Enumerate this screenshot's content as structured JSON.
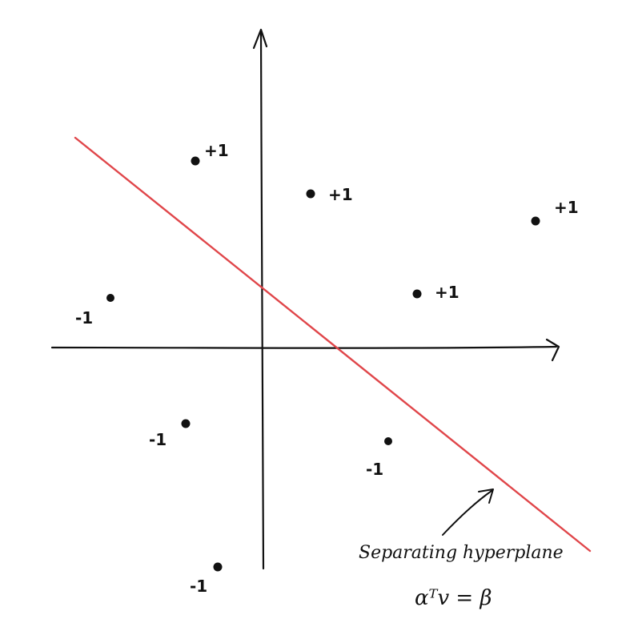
{
  "points": [
    {
      "label": "+1",
      "class": "positive"
    },
    {
      "label": "+1",
      "class": "positive"
    },
    {
      "label": "+1",
      "class": "positive"
    },
    {
      "label": "+1",
      "class": "positive"
    },
    {
      "label": "-1",
      "class": "negative"
    },
    {
      "label": "-1",
      "class": "negative"
    },
    {
      "label": "-1",
      "class": "negative"
    },
    {
      "label": "-1",
      "class": "negative"
    }
  ],
  "hyperplane": {
    "label": "Separating hyperplane",
    "equation": "αᵀv = β",
    "color": "#e0464a"
  },
  "colors": {
    "ink": "#111111",
    "line": "#e0464a"
  }
}
